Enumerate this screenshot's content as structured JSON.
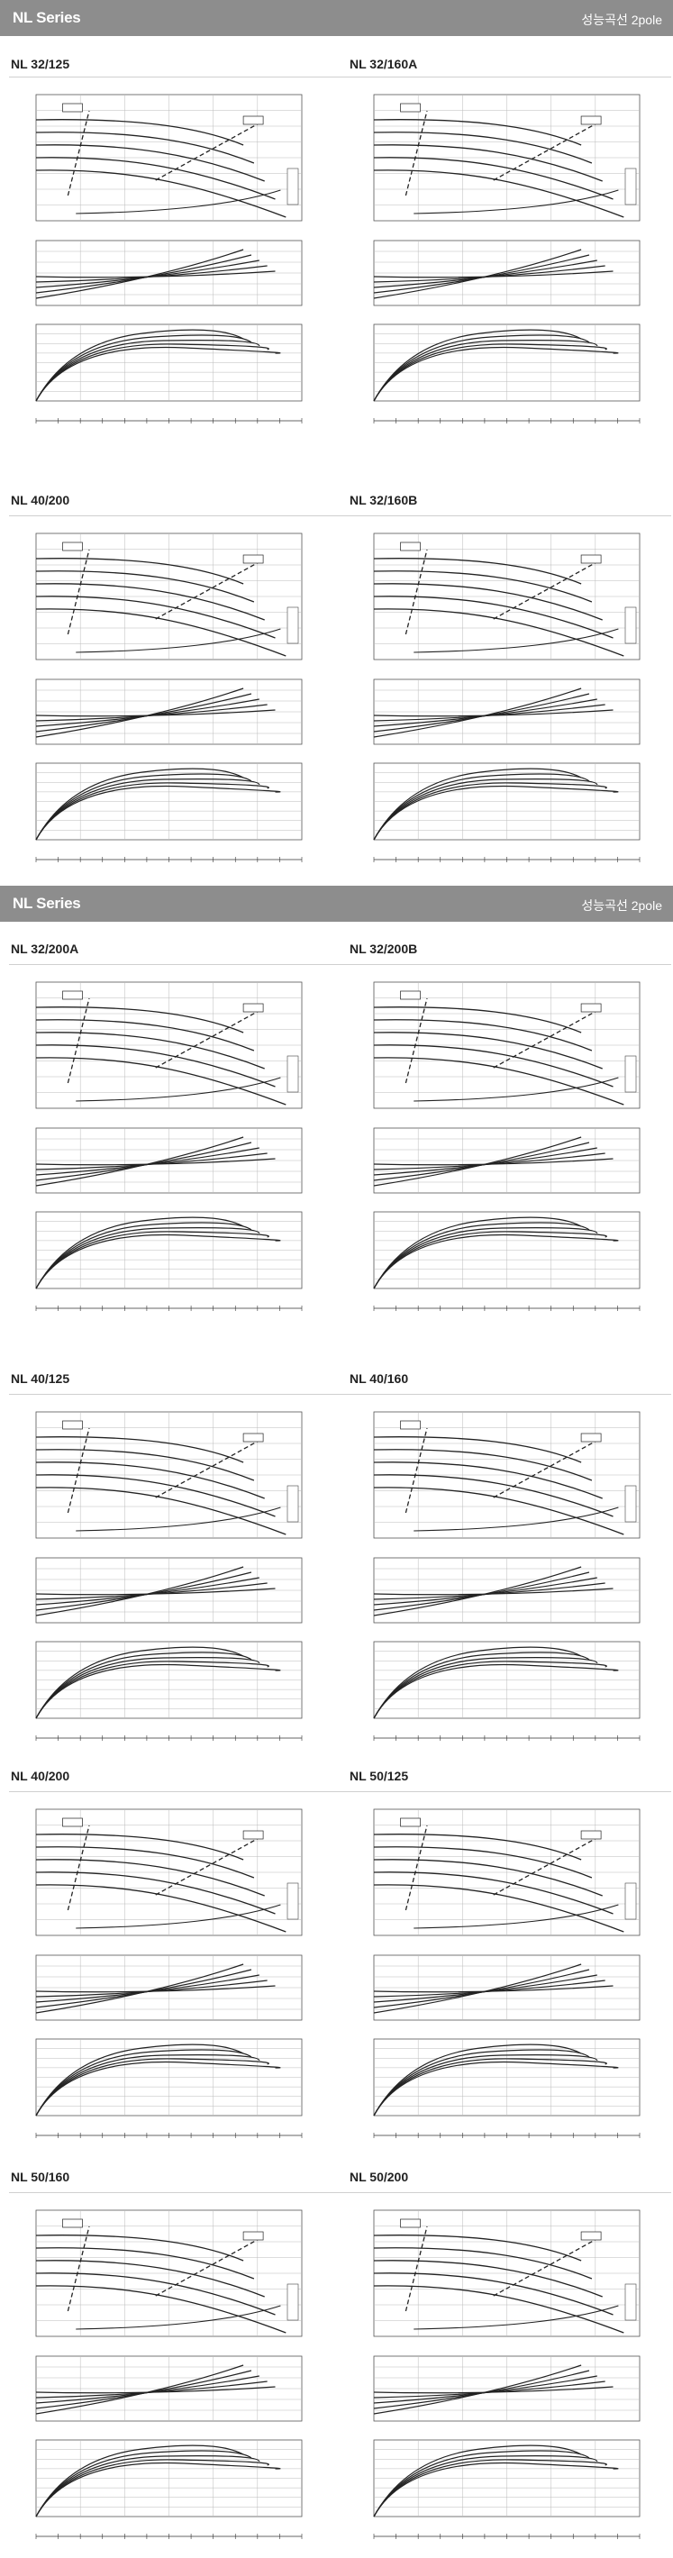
{
  "page": {
    "banners": [
      {
        "series": "NL Series",
        "curve_label": "성능곡선 2pole"
      },
      {
        "series": "NL Series",
        "curve_label": "성능곡선 2pole"
      }
    ]
  },
  "charts": [
    {
      "model": "NL 32/125"
    },
    {
      "model": "NL 32/160A"
    },
    {
      "model": "NL 40/200"
    },
    {
      "model": "NL 32/160B"
    },
    {
      "model": "NL 32/200A"
    },
    {
      "model": "NL 32/200B"
    },
    {
      "model": "NL 40/125"
    },
    {
      "model": "NL 40/160"
    },
    {
      "model": "NL 40/200"
    },
    {
      "model": "NL 50/125"
    },
    {
      "model": "NL 50/160"
    },
    {
      "model": "NL 50/200"
    }
  ]
}
